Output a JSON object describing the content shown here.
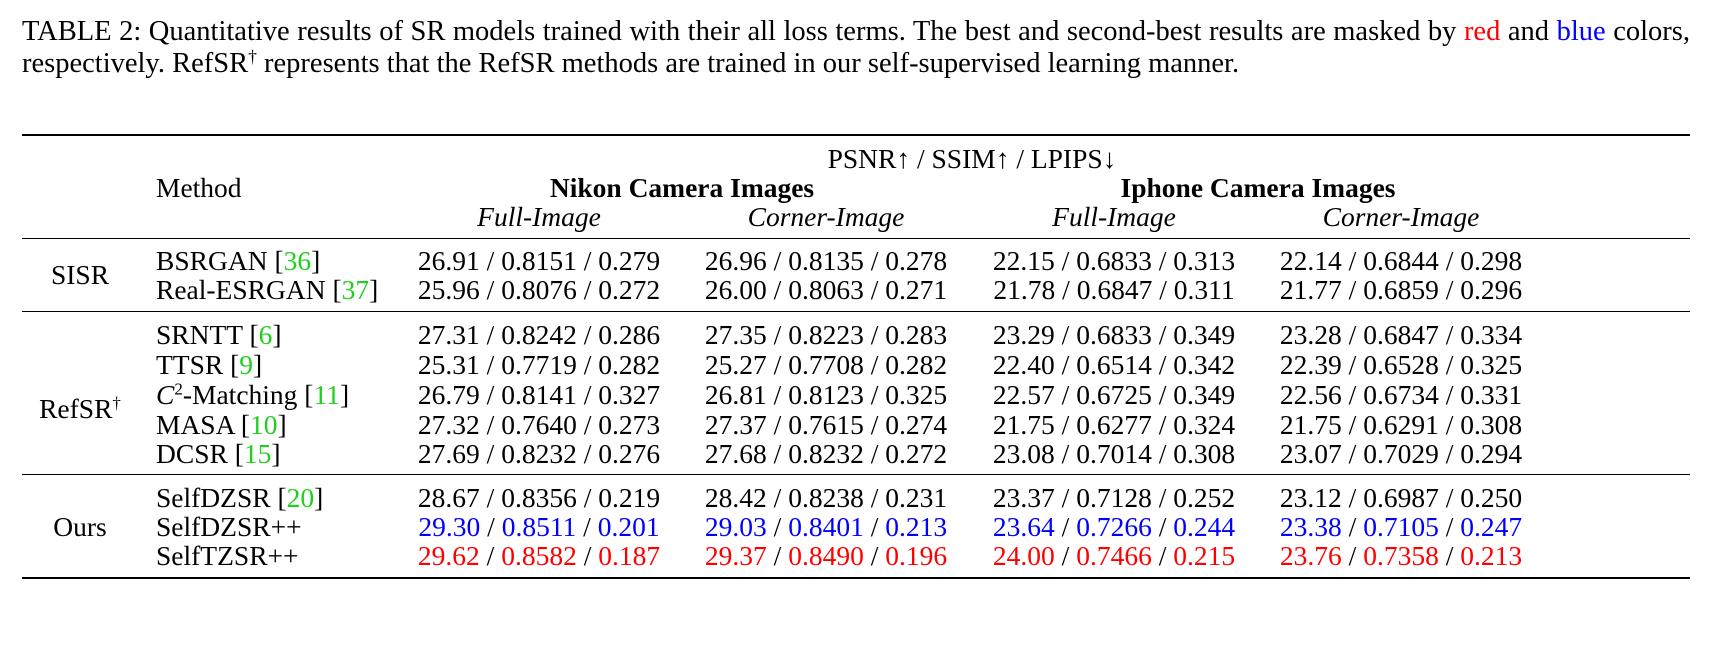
{
  "caption": {
    "part1": "TABLE 2: Quantitative results of SR models trained with their all loss terms. The best and second-best results are masked by ",
    "red_word": "red",
    "and_word": " and ",
    "blue_word": "blue",
    "part2": " colors, respectively. RefSR",
    "dagger": "†",
    "part3": " represents that the RefSR methods are trained in our self-supervised learning manner."
  },
  "header": {
    "metrics": "PSNR↑ / SSIM↑ / LPIPS↓",
    "method": "Method",
    "groups": [
      "Nikon Camera Images",
      "Iphone Camera Images"
    ],
    "subcols": [
      "Full-Image",
      "Corner-Image",
      "Full-Image",
      "Corner-Image"
    ]
  },
  "colors": {
    "best": "#ff0000",
    "second": "#0000ff",
    "citation": "#1fd01f"
  },
  "separator": " / ",
  "sections": [
    {
      "label": "SISR",
      "label_sup": "",
      "rows": [
        {
          "method": "BSRGAN",
          "cite": "36",
          "cells": [
            [
              "26.91",
              "0.8151",
              "0.279"
            ],
            [
              "26.96",
              "0.8135",
              "0.278"
            ],
            [
              "22.15",
              "0.6833",
              "0.313"
            ],
            [
              "22.14",
              "0.6844",
              "0.298"
            ]
          ]
        },
        {
          "method": "Real-ESRGAN",
          "cite": "37",
          "cells": [
            [
              "25.96",
              "0.8076",
              "0.272"
            ],
            [
              "26.00",
              "0.8063",
              "0.271"
            ],
            [
              "21.78",
              "0.6847",
              "0.311"
            ],
            [
              "21.77",
              "0.6859",
              "0.296"
            ]
          ]
        }
      ]
    },
    {
      "label": "RefSR",
      "label_sup": "†",
      "rows": [
        {
          "method": "SRNTT",
          "cite": "6",
          "cells": [
            [
              "27.31",
              "0.8242",
              "0.286"
            ],
            [
              "27.35",
              "0.8223",
              "0.283"
            ],
            [
              "23.29",
              "0.6833",
              "0.349"
            ],
            [
              "23.28",
              "0.6847",
              "0.334"
            ]
          ]
        },
        {
          "method": "TTSR",
          "cite": "9",
          "cells": [
            [
              "25.31",
              "0.7719",
              "0.282"
            ],
            [
              "25.27",
              "0.7708",
              "0.282"
            ],
            [
              "22.40",
              "0.6514",
              "0.342"
            ],
            [
              "22.39",
              "0.6528",
              "0.325"
            ]
          ]
        },
        {
          "method_c": "C",
          "method_c_sup": "2",
          "method": "-Matching",
          "cite": "11",
          "cells": [
            [
              "26.79",
              "0.8141",
              "0.327"
            ],
            [
              "26.81",
              "0.8123",
              "0.325"
            ],
            [
              "22.57",
              "0.6725",
              "0.349"
            ],
            [
              "22.56",
              "0.6734",
              "0.331"
            ]
          ]
        },
        {
          "method": "MASA",
          "cite": "10",
          "cells": [
            [
              "27.32",
              "0.7640",
              "0.273"
            ],
            [
              "27.37",
              "0.7615",
              "0.274"
            ],
            [
              "21.75",
              "0.6277",
              "0.324"
            ],
            [
              "21.75",
              "0.6291",
              "0.308"
            ]
          ]
        },
        {
          "method": "DCSR",
          "cite": "15",
          "cells": [
            [
              "27.69",
              "0.8232",
              "0.276"
            ],
            [
              "27.68",
              "0.8232",
              "0.272"
            ],
            [
              "23.08",
              "0.7014",
              "0.308"
            ],
            [
              "23.07",
              "0.7029",
              "0.294"
            ]
          ]
        }
      ]
    },
    {
      "label": "Ours",
      "label_sup": "",
      "rows": [
        {
          "method": "SelfDZSR",
          "cite": "20",
          "rank": "",
          "cells": [
            [
              "28.67",
              "0.8356",
              "0.219"
            ],
            [
              "28.42",
              "0.8238",
              "0.231"
            ],
            [
              "23.37",
              "0.7128",
              "0.252"
            ],
            [
              "23.12",
              "0.6987",
              "0.250"
            ]
          ]
        },
        {
          "method": "SelfDZSR++",
          "cite": "",
          "rank": "second",
          "cells": [
            [
              "29.30",
              "0.8511",
              "0.201"
            ],
            [
              "29.03",
              "0.8401",
              "0.213"
            ],
            [
              "23.64",
              "0.7266",
              "0.244"
            ],
            [
              "23.38",
              "0.7105",
              "0.247"
            ]
          ]
        },
        {
          "method": "SelfTZSR++",
          "cite": "",
          "rank": "best",
          "cells": [
            [
              "29.62",
              "0.8582",
              "0.187"
            ],
            [
              "29.37",
              "0.8490",
              "0.196"
            ],
            [
              "24.00",
              "0.7466",
              "0.215"
            ],
            [
              "23.76",
              "0.7358",
              "0.213"
            ]
          ]
        }
      ]
    }
  ]
}
